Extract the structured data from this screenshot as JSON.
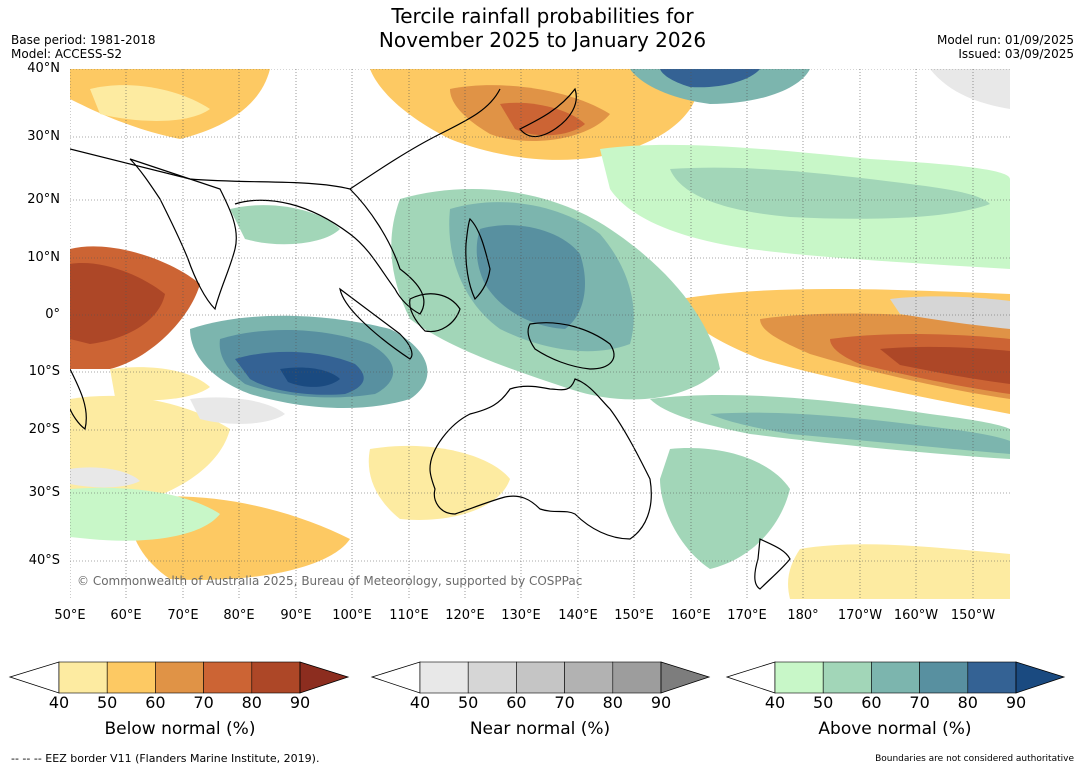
{
  "title_line1": "Tercile rainfall probabilities for",
  "title_line2": "November 2025 to January 2026",
  "meta_left": [
    "Base period: 1981-2018",
    "Model: ACCESS-S2"
  ],
  "meta_right": [
    "Model run: 01/09/2025",
    "Issued: 03/09/2025"
  ],
  "copyright": "© Commonwealth of Australia 2025, Bureau of Meteorology, supported by COSPPac",
  "lat_labels": [
    "40°N",
    "30°N",
    "20°N",
    "10°N",
    "0°",
    "10°S",
    "20°S",
    "30°S",
    "40°S"
  ],
  "lon_labels": [
    "50°E",
    "60°E",
    "70°E",
    "80°E",
    "90°E",
    "100°E",
    "110°E",
    "120°E",
    "130°E",
    "140°E",
    "150°E",
    "160°E",
    "170°E",
    "180°",
    "170°W",
    "160°W",
    "150°W"
  ],
  "colorbars": [
    {
      "title": "Below normal (%)",
      "ticks": [
        "40",
        "50",
        "60",
        "70",
        "80",
        "90"
      ],
      "colors": [
        "#ffffff",
        "#fdeba1",
        "#fdc963",
        "#e09346",
        "#cc6434",
        "#ad4727",
        "#8c2d1f"
      ]
    },
    {
      "title": "Near normal (%)",
      "ticks": [
        "40",
        "50",
        "60",
        "70",
        "80",
        "90"
      ],
      "colors": [
        "#ffffff",
        "#e8e8e8",
        "#d6d6d6",
        "#c5c5c5",
        "#b2b2b2",
        "#9d9d9d",
        "#7d7d7d"
      ]
    },
    {
      "title": "Above normal (%)",
      "ticks": [
        "40",
        "50",
        "60",
        "70",
        "80",
        "90"
      ],
      "colors": [
        "#ffffff",
        "#c8f7c8",
        "#a2d6b8",
        "#7cb5ae",
        "#5890a0",
        "#346294",
        "#1a4a80"
      ]
    }
  ],
  "footer_left": "--  --  -- EEZ border V11 (Flanders Marine Institute, 2019).",
  "footer_right": "Boundaries are not considered authoritative"
}
